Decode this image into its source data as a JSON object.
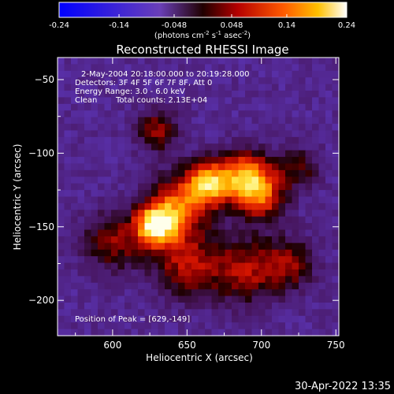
{
  "colorbar": {
    "ticks": [
      "-0.24",
      "-0.14",
      "-0.048",
      "0.048",
      "0.14",
      "0.24"
    ],
    "tick_values": [
      -0.24,
      -0.14,
      -0.048,
      0.048,
      0.14,
      0.24
    ],
    "range": [
      -0.24,
      0.24
    ],
    "unit_label": "(photons cm",
    "unit_sup1": "-2",
    "unit_mid": " s",
    "unit_sup2": "-1",
    "unit_mid2": " asec",
    "unit_sup3": "-2",
    "unit_end": ")"
  },
  "chart_data": {
    "type": "heatmap",
    "title": "Reconstructed RHESSI Image",
    "xlabel": "Heliocentric X (arcsec)",
    "ylabel": "Heliocentric Y (arcsec)",
    "xlim": [
      563,
      752
    ],
    "ylim": [
      -224,
      -35
    ],
    "x_ticks": [
      600,
      650,
      700,
      750
    ],
    "x_tick_labels": [
      "600",
      "650",
      "700",
      "750"
    ],
    "y_ticks": [
      -50,
      -100,
      -150,
      -200
    ],
    "y_tick_labels": [
      "−50",
      "−100",
      "−150",
      "−200"
    ],
    "annotations": [
      "2-May-2004 20:18:00.000 to 20:19:28.000",
      "Detectors: 3F 4F 5F 6F 7F 8F, Att 0",
      "Energy Range: 3.0 - 6.0 keV",
      "Clean",
      "Total counts: 2.13E+04"
    ],
    "peak_label": "Position of Peak = [629,-149]",
    "peak": [
      629,
      -149
    ],
    "sources": [
      {
        "x": 629,
        "y": -149,
        "amp": 0.24,
        "sigma": 10
      },
      {
        "x": 665,
        "y": -120,
        "amp": 0.19,
        "sigma": 11
      },
      {
        "x": 690,
        "y": -115,
        "amp": 0.17,
        "sigma": 12
      },
      {
        "x": 700,
        "y": -130,
        "amp": 0.12,
        "sigma": 12
      },
      {
        "x": 645,
        "y": -135,
        "amp": 0.14,
        "sigma": 14
      },
      {
        "x": 650,
        "y": -175,
        "amp": 0.1,
        "sigma": 16
      },
      {
        "x": 690,
        "y": -180,
        "amp": 0.09,
        "sigma": 16
      },
      {
        "x": 630,
        "y": -85,
        "amp": 0.08,
        "sigma": 10
      },
      {
        "x": 600,
        "y": -160,
        "amp": 0.08,
        "sigma": 14
      },
      {
        "x": 720,
        "y": -175,
        "amp": 0.07,
        "sigma": 12
      },
      {
        "x": 725,
        "y": -110,
        "amp": 0.05,
        "sigma": 10
      }
    ]
  },
  "footer": {
    "timestamp": "30-Apr-2022 13:35"
  }
}
